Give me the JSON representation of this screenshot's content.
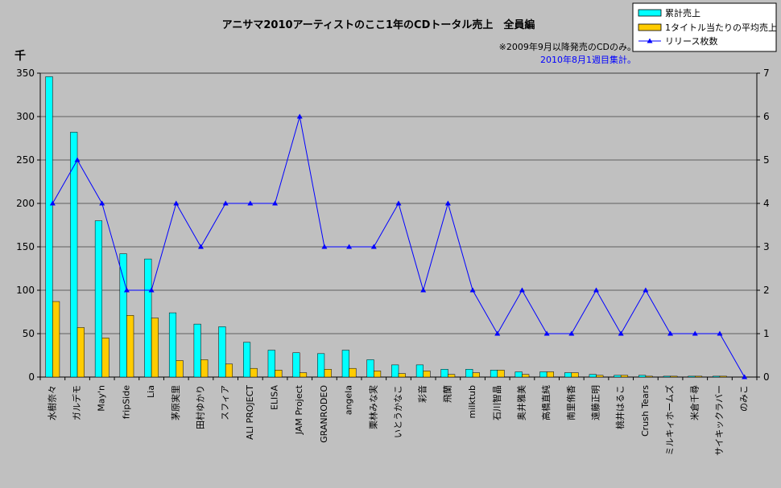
{
  "chart_data": {
    "type": "bar",
    "title": "アニサマ2010アーティストのここ1年のCDトータル売上　全員編",
    "notes": [
      "※2009年9月以降発売のCDのみ。",
      "2010年8月1週目集計。"
    ],
    "y_unit_label": "千",
    "ylim": [
      0,
      350
    ],
    "yticks": [
      0,
      50,
      100,
      150,
      200,
      250,
      300,
      350
    ],
    "y2lim": [
      0,
      7
    ],
    "y2ticks": [
      0,
      1,
      2,
      3,
      4,
      5,
      6,
      7
    ],
    "grid": true,
    "legend_position": "top-right",
    "categories": [
      "水樹奈々",
      "ガルデモ",
      "May'n",
      "fripSide",
      "Lia",
      "茅原実里",
      "田村ゆかり",
      "スフィア",
      "ALI PROJECT",
      "ELISA",
      "JAM Project",
      "GRANRODEO",
      "angela",
      "栗林みな実",
      "いとうかなこ",
      "彩音",
      "飛蘭",
      "milktub",
      "石川智晶",
      "奥井雅美",
      "高橋直純",
      "南里侑香",
      "遠藤正明",
      "桃井はるこ",
      "Crush Tears",
      "ミルキィホームズ",
      "米倉千尋",
      "サイキックラバー",
      "のみこ"
    ],
    "series": [
      {
        "name": "累計売上",
        "type": "bar",
        "axis": "left",
        "color": "#00ffff",
        "values": [
          346,
          282,
          180,
          142,
          136,
          74,
          61,
          58,
          40,
          31,
          28,
          27,
          31,
          20,
          14,
          14,
          9,
          9,
          8,
          6,
          6,
          5,
          3,
          2,
          2,
          1,
          1,
          1,
          0
        ]
      },
      {
        "name": "1タイトル当たりの平均売上",
        "type": "bar",
        "axis": "left",
        "color": "#ffcc00",
        "values": [
          87,
          57,
          45,
          71,
          68,
          19,
          20,
          15,
          10,
          8,
          5,
          9,
          10,
          7,
          4,
          7,
          3,
          5,
          8,
          3,
          6,
          5,
          2,
          2,
          1,
          1,
          1,
          1,
          0
        ]
      },
      {
        "name": "リリース枚数",
        "type": "line",
        "axis": "right",
        "color": "#0000ff",
        "values": [
          4,
          5,
          4,
          2,
          2,
          4,
          3,
          4,
          4,
          4,
          6,
          3,
          3,
          3,
          4,
          2,
          4,
          2,
          1,
          2,
          1,
          1,
          2,
          1,
          2,
          1,
          1,
          1,
          0
        ]
      }
    ]
  }
}
